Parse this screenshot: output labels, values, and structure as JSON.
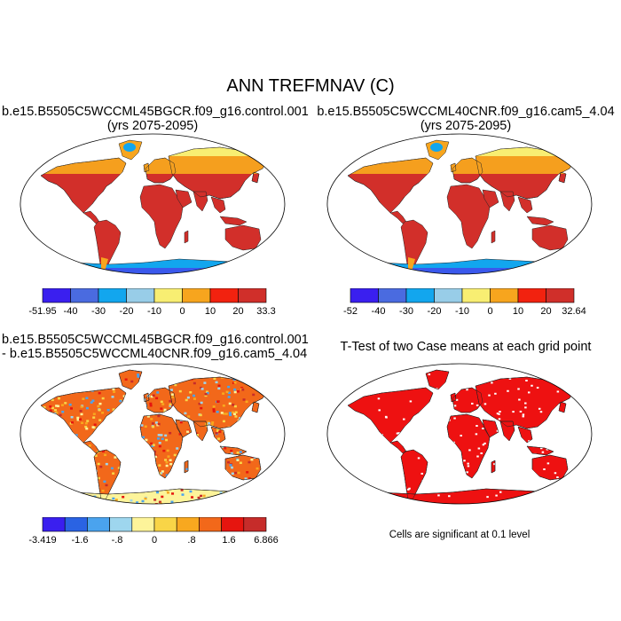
{
  "title": "ANN TREFMNAV (C)",
  "panels": [
    {
      "id": "control",
      "title_lines": [
        "b.e15.B5505C5WCCML45BGCR.f09_g16.control.001",
        "(yrs 2075-2095)"
      ],
      "colorbar": {
        "colors": [
          "#3a1fef",
          "#4a6be0",
          "#12a6ee",
          "#98cde8",
          "#f8ee72",
          "#f7a51e",
          "#f2220f",
          "#d02f2a"
        ],
        "labels": [
          "-51.95",
          "-40",
          "-30",
          "-20",
          "-10",
          "0",
          "10",
          "20",
          "33.3"
        ]
      }
    },
    {
      "id": "cam5",
      "title_lines": [
        "b.e15.B5505C5WCCML40CNR.f09_g16.cam5_4.04",
        "(yrs 2075-2095)"
      ],
      "colorbar": {
        "colors": [
          "#3a1fef",
          "#4a6be0",
          "#12a6ee",
          "#98cde8",
          "#f8ee72",
          "#f7a51e",
          "#f2220f",
          "#d02f2a"
        ],
        "labels": [
          "-52",
          "-40",
          "-30",
          "-20",
          "-10",
          "0",
          "10",
          "20",
          "32.64"
        ]
      }
    },
    {
      "id": "difference",
      "title_lines": [
        "b.e15.B5505C5WCCML45BGCR.f09_g16.control.001",
        "- b.e15.B5505C5WCCML40CNR.f09_g16.cam5_4.04"
      ],
      "colorbar": {
        "colors": [
          "#3a1fef",
          "#2a63e3",
          "#4aa3ee",
          "#9ed6ee",
          "#fdf49a",
          "#f9d547",
          "#f8a81f",
          "#f2681a",
          "#e6150f",
          "#c62c2a"
        ],
        "labels": [
          "-3.419",
          "-1.6",
          "-.8",
          "0",
          ".8",
          "1.6",
          "6.866"
        ]
      }
    },
    {
      "id": "ttest",
      "title_lines": [
        "T-Test of two Case means at each grid point"
      ],
      "note": "Cells are significant at 0.1 level"
    }
  ],
  "colors": {
    "land_warm": "#d22f2a",
    "land_orange": "#f7a51e",
    "land_yellow": "#f8ee72",
    "ice_blue": "#3a58ec",
    "ice_light": "#12a6ee",
    "ttest_red": "#ee1111"
  }
}
